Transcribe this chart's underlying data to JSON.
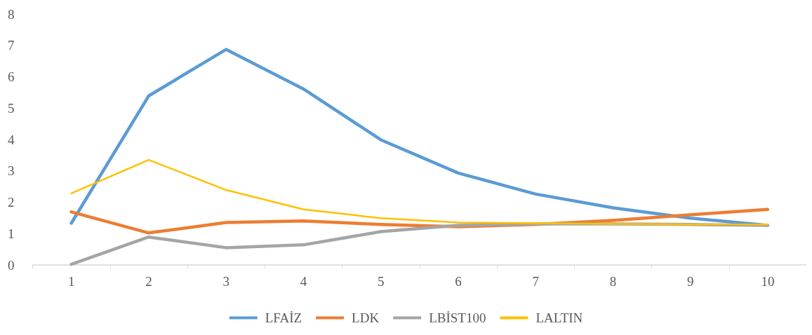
{
  "chart_data": {
    "type": "line",
    "categories": [
      "1",
      "2",
      "3",
      "4",
      "5",
      "6",
      "7",
      "8",
      "9",
      "10"
    ],
    "ylim": [
      0,
      8
    ],
    "yticks": [
      0,
      1,
      2,
      3,
      4,
      5,
      6,
      7,
      8
    ],
    "grid": false,
    "legend": "bottom",
    "marker": "none",
    "line_style": "solid",
    "series": [
      {
        "name": "LFAİZ",
        "color": "#5b9bd5",
        "values": [
          1.33,
          5.39,
          6.87,
          5.61,
          3.99,
          2.93,
          2.26,
          1.82,
          1.49,
          1.26
        ]
      },
      {
        "name": "LDK",
        "color": "#ed7d31",
        "values": [
          1.69,
          1.02,
          1.35,
          1.4,
          1.29,
          1.22,
          1.29,
          1.42,
          1.6,
          1.77
        ]
      },
      {
        "name": "LBİST100",
        "color": "#a5a5a5",
        "values": [
          0.02,
          0.89,
          0.55,
          0.64,
          1.06,
          1.26,
          1.31,
          1.31,
          1.29,
          1.26
        ]
      },
      {
        "name": "LALTIN",
        "color": "#ffc000",
        "values": [
          2.28,
          3.35,
          2.39,
          1.77,
          1.49,
          1.35,
          1.33,
          1.31,
          1.29,
          1.29
        ]
      }
    ]
  }
}
